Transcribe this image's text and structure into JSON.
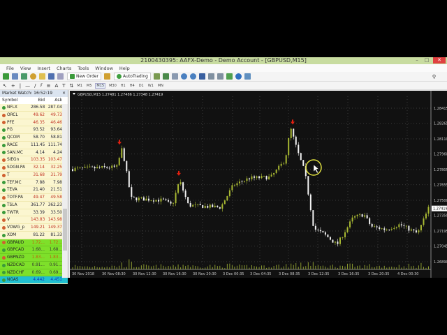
{
  "window": {
    "title": "2100430395: AAFX-Demo - Demo Account - [GBPUSD,M15]"
  },
  "menu": [
    "File",
    "View",
    "Insert",
    "Charts",
    "Tools",
    "Window",
    "Help"
  ],
  "toolbar": {
    "new_order": "New Order",
    "autotrading": "AutoTrading",
    "timeframes": [
      "M1",
      "M5",
      "M15",
      "M30",
      "H1",
      "H4",
      "D1",
      "W1",
      "MN"
    ],
    "selected_timeframe": "M15",
    "text_tool": "A"
  },
  "market_watch": {
    "title": "Market Watch: 16:52:19",
    "close": "×",
    "columns": [
      "Symbol",
      "Bid",
      "Ask"
    ],
    "rows": [
      {
        "symbol": "NFLX",
        "bid": "286.58",
        "ask": "287.04",
        "dir": "up"
      },
      {
        "symbol": "ORCL",
        "bid": "49.62",
        "ask": "49.73",
        "dir": "down"
      },
      {
        "symbol": "PFE",
        "bid": "46.35",
        "ask": "46.46",
        "dir": "down"
      },
      {
        "symbol": "PG",
        "bid": "93.52",
        "ask": "93.64",
        "dir": "up"
      },
      {
        "symbol": "QCOM",
        "bid": "58.70",
        "ask": "58.81",
        "dir": "up"
      },
      {
        "symbol": "RACE",
        "bid": "111.45",
        "ask": "111.74",
        "dir": "up"
      },
      {
        "symbol": "SAN.MC",
        "bid": "4.14",
        "ask": "4.24",
        "dir": "up"
      },
      {
        "symbol": "SIEGn",
        "bid": "103.35",
        "ask": "103.47",
        "dir": "down"
      },
      {
        "symbol": "SOGN.PA",
        "bid": "32.14",
        "ask": "32.25",
        "dir": "down"
      },
      {
        "symbol": "T",
        "bid": "31.68",
        "ask": "31.79",
        "dir": "down"
      },
      {
        "symbol": "TEF.MC",
        "bid": "7.88",
        "ask": "7.98",
        "dir": "up"
      },
      {
        "symbol": "TEVA",
        "bid": "21.40",
        "ask": "21.51",
        "dir": "up"
      },
      {
        "symbol": "TOTF.PA",
        "bid": "49.47",
        "ask": "49.58",
        "dir": "down"
      },
      {
        "symbol": "TSLA",
        "bid": "361.77",
        "ask": "362.23",
        "dir": "up"
      },
      {
        "symbol": "TWTR",
        "bid": "33.39",
        "ask": "33.50",
        "dir": "up"
      },
      {
        "symbol": "V",
        "bid": "143.83",
        "ask": "143.98",
        "dir": "down"
      },
      {
        "symbol": "VOWG_p",
        "bid": "149.21",
        "ask": "149.37",
        "dir": "down"
      },
      {
        "symbol": "XOM",
        "bid": "81.22",
        "ask": "81.33",
        "dir": "up"
      },
      {
        "symbol": "GBPAUD",
        "bid": "1.72...",
        "ask": "1.72...",
        "dir": "down",
        "hl": "green"
      },
      {
        "symbol": "GBPCAD",
        "bid": "1.68...",
        "ask": "1.68...",
        "dir": "up",
        "hl": "green"
      },
      {
        "symbol": "GBPNZD",
        "bid": "1.83...",
        "ask": "1.83...",
        "dir": "down",
        "hl": "green"
      },
      {
        "symbol": "NZDCAD",
        "bid": "0.91...",
        "ask": "0.91...",
        "dir": "up",
        "hl": "green"
      },
      {
        "symbol": "NZDCHF",
        "bid": "0.69...",
        "ask": "0.69...",
        "dir": "up",
        "hl": "green"
      },
      {
        "symbol": "NGAS",
        "bid": "4.442",
        "ask": "4.451",
        "dir": "up",
        "hl": "cyan"
      }
    ]
  },
  "chart_data": {
    "type": "candlestick",
    "header": "GBPUSD,M15  1.27481 1.27486 1.27348 1.27419",
    "symbol": "GBPUSD",
    "timeframe": "M15",
    "ohlc_last": {
      "open": 1.27481,
      "high": 1.27486,
      "low": 1.27348,
      "close": 1.27419
    },
    "current_price": "1.27419",
    "y_ticks": [
      "1.28415",
      "1.28265",
      "1.28110",
      "1.27960",
      "1.27805",
      "1.27655",
      "1.27500",
      "1.27350",
      "1.27195",
      "1.27045",
      "1.26890"
    ],
    "ylim": [
      1.2689,
      1.28415
    ],
    "x_ticks": [
      "30 Nov 2018",
      "30 Nov 08:30",
      "30 Nov 12:30",
      "30 Nov 16:30",
      "30 Nov 20:30",
      "3 Dec 00:35",
      "3 Dec 04:35",
      "3 Dec 08:35",
      "3 Dec 12:35",
      "3 Dec 16:35",
      "3 Dec 20:35",
      "4 Dec 00:30"
    ],
    "price_path": [
      [
        0,
        1.2781
      ],
      [
        0.13,
        1.2783
      ],
      [
        0.145,
        1.2802
      ],
      [
        0.17,
        1.2752
      ],
      [
        0.26,
        1.275
      ],
      [
        0.285,
        1.2745
      ],
      [
        0.305,
        1.277
      ],
      [
        0.33,
        1.2745
      ],
      [
        0.42,
        1.2743
      ],
      [
        0.455,
        1.2765
      ],
      [
        0.5,
        1.2772
      ],
      [
        0.56,
        1.2773
      ],
      [
        0.6,
        1.279
      ],
      [
        0.615,
        1.2822
      ],
      [
        0.635,
        1.2798
      ],
      [
        0.655,
        1.2778
      ],
      [
        0.68,
        1.2722
      ],
      [
        0.71,
        1.2716
      ],
      [
        0.745,
        1.2706
      ],
      [
        0.79,
        1.2733
      ],
      [
        0.82,
        1.2736
      ],
      [
        0.84,
        1.2724
      ],
      [
        0.88,
        1.2721
      ],
      [
        0.92,
        1.2726
      ],
      [
        0.97,
        1.2717
      ],
      [
        1,
        1.2742
      ]
    ],
    "sell_arrows": [
      1.2806,
      1.2775,
      1.2826
    ],
    "colors": {
      "bull": "#a8b832",
      "bear": "#f2f2f2",
      "background": "#111111",
      "grid": "#3a3a3a",
      "arrow": "#e02010",
      "volume": "#8a9a30"
    }
  }
}
